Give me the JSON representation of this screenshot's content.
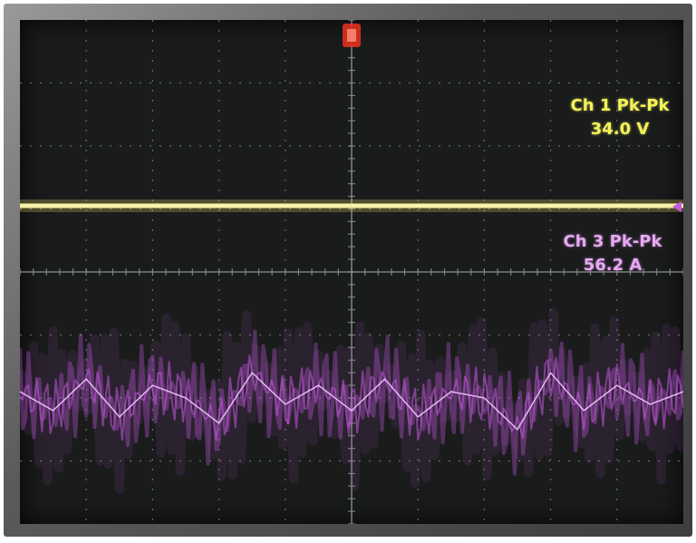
{
  "readouts": {
    "ch1": {
      "label": "Ch 1 Pk-Pk",
      "value": "34.0 V",
      "color": "#f4f256"
    },
    "ch3": {
      "label": "Ch 3 Pk-Pk",
      "value": "56.2 A",
      "color": "#e6aaf0"
    }
  },
  "colors": {
    "screen": "#1a1c1c",
    "grid": "#8a8f8f",
    "ch1_trace": "#fffbb0",
    "ch3_trace": "#c45ae0",
    "trigger_marker": "#e0301e"
  },
  "chart_data": {
    "type": "line",
    "title": "",
    "xlabel": "",
    "ylabel": "",
    "grid": true,
    "divisions": {
      "x": 10,
      "y": 8
    },
    "legend": "none",
    "series": [
      {
        "name": "Ch 1",
        "color": "#fffbb0",
        "pk_pk": 34.0,
        "unit": "V",
        "level_div": 1.05,
        "values": [
          1.05,
          1.05,
          1.05,
          1.05,
          1.05,
          1.05,
          1.05,
          1.05,
          1.05,
          1.05,
          1.05
        ]
      },
      {
        "name": "Ch 3",
        "color": "#c45ae0",
        "pk_pk": 56.2,
        "unit": "A",
        "center_div": -1.95,
        "values": [
          -1.9,
          -2.2,
          -1.7,
          -2.3,
          -1.8,
          -2.0,
          -2.4,
          -1.6,
          -2.1,
          -1.8,
          -2.2,
          -1.7,
          -2.3,
          -1.9,
          -2.0,
          -2.5,
          -1.6,
          -2.2,
          -1.8,
          -2.1,
          -1.9
        ]
      }
    ]
  }
}
